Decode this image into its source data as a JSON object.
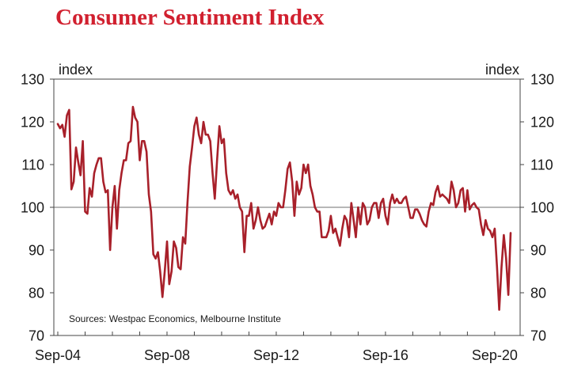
{
  "chart_data": {
    "type": "line",
    "title": "Consumer Sentiment Index",
    "ylabel_left": "index",
    "ylabel_right": "index",
    "source": "Sources: Westpac Economics, Melbourne Institute",
    "ylim": [
      70,
      130
    ],
    "yticks": [
      70,
      80,
      90,
      100,
      110,
      120,
      130
    ],
    "xticks": [
      "Sep-04",
      "Sep-08",
      "Sep-12",
      "Sep-16",
      "Sep-20"
    ],
    "reference_line": 100,
    "line_color": "#a8202a",
    "series": [
      {
        "name": "Consumer Sentiment Index",
        "start": "Sep-04",
        "frequency": "monthly",
        "values": [
          119.5,
          118.5,
          119.3,
          116.5,
          121.5,
          122.8,
          104.2,
          106,
          114,
          110.5,
          107.5,
          115.5,
          99,
          98.5,
          104.5,
          102.5,
          108,
          110,
          111.5,
          111.5,
          106,
          103.5,
          104,
          90,
          100,
          105,
          95,
          104,
          108,
          111,
          111,
          115,
          115.5,
          123.5,
          121,
          120,
          111,
          115.5,
          115.5,
          113,
          103,
          99,
          89,
          88,
          89.5,
          85,
          79,
          85,
          92,
          82,
          85,
          92,
          90.5,
          86,
          85.5,
          93,
          91.5,
          101,
          109.5,
          114,
          119,
          121,
          117,
          115,
          120,
          117,
          117,
          115.5,
          108,
          102,
          111,
          119,
          115,
          116,
          108,
          104,
          103,
          104,
          102,
          103,
          100,
          99,
          89.5,
          98,
          98,
          101,
          95,
          97,
          100,
          97,
          95,
          95.5,
          97,
          98.5,
          96,
          99,
          98,
          101,
          100,
          100,
          104,
          109,
          110.5,
          106,
          98,
          106,
          103,
          104.5,
          110,
          108,
          110,
          105,
          103,
          100,
          99,
          99,
          93,
          93,
          93,
          94.5,
          98,
          94,
          95,
          93,
          91,
          95,
          98,
          97,
          93,
          101,
          97,
          93,
          100,
          96,
          101,
          100,
          96,
          97,
          100,
          101,
          101,
          97.5,
          101,
          102,
          98,
          96,
          101,
          103,
          101,
          102,
          101,
          101,
          102,
          102.5,
          100,
          97.5,
          97.5,
          99.5,
          99.5,
          98.5,
          97,
          96,
          95.5,
          99,
          101,
          100.5,
          103.5,
          105,
          102.5,
          103,
          102.5,
          102,
          101,
          106,
          104,
          100,
          101,
          104,
          104.5,
          99,
          104,
          99.5,
          100.5,
          101,
          100,
          99.5,
          96,
          93.5,
          97,
          95,
          94.5,
          93,
          95,
          86,
          76,
          86,
          93.5,
          88,
          79.5,
          94
        ]
      }
    ]
  }
}
